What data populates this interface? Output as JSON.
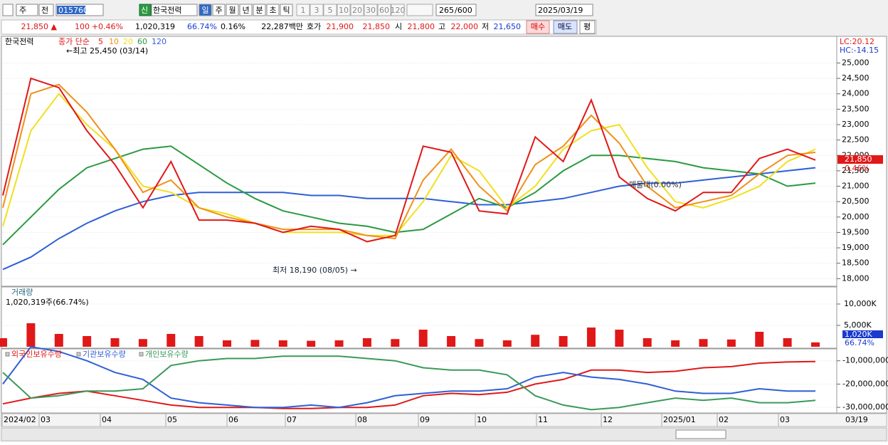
{
  "toolbar": {
    "market": "주",
    "mode": "전",
    "code": "015760",
    "badge": "신",
    "name": "한국전력",
    "periods": [
      "일",
      "주",
      "월",
      "년",
      "분",
      "초",
      "틱"
    ],
    "intervals": [
      "1",
      "3",
      "5",
      "10",
      "20",
      "30",
      "60",
      "120"
    ],
    "count": "265",
    "max": "/600",
    "date": "2025/03/19"
  },
  "quote": {
    "price": "21,850 ▲",
    "change": "100",
    "rate": "+0.46%",
    "volume": "1,020,319",
    "volume_rate": "66.74%",
    "turnover_rate": "0.16%",
    "amount": "22,287백만",
    "ask_label": "호가",
    "ask": "21,900",
    "bid": "21,850",
    "open_label": "시",
    "open": "21,800",
    "high_label": "고",
    "high": "22,000",
    "low_label": "저",
    "low": "21,650",
    "buy": "매수",
    "sell": "매도",
    "avg": "평"
  },
  "price_panel": {
    "name": "한국전력",
    "ma_label": "종가 단순",
    "max_note": "←최고 25,450 (03/14)",
    "min_note": "최저 18,190 (08/05) →",
    "zone_note": "매물대(0.00%)",
    "lc": "LC:20.12",
    "hc": "HC:-14.15",
    "last_price": "21,850",
    "last_rate": "0.46%",
    "ylim": [
      17800,
      25750
    ],
    "yticks": [
      {
        "value": 18000,
        "label": "18,000"
      },
      {
        "value": 18500,
        "label": "18,500"
      },
      {
        "value": 19000,
        "label": "19,000"
      },
      {
        "value": 19500,
        "label": "19,500"
      },
      {
        "value": 20000,
        "label": "20,000"
      },
      {
        "value": 20500,
        "label": "20,500"
      },
      {
        "value": 21000,
        "label": "21,000"
      },
      {
        "value": 21500,
        "label": "21,500"
      },
      {
        "value": 22000,
        "label": "22,000"
      },
      {
        "value": 22500,
        "label": "22,500"
      },
      {
        "value": 23000,
        "label": "23,000"
      },
      {
        "value": 23500,
        "label": "23,500"
      },
      {
        "value": 24000,
        "label": "24,000"
      },
      {
        "value": 24500,
        "label": "24,500"
      },
      {
        "value": 25000,
        "label": "25,000"
      }
    ],
    "series": [
      {
        "name": "120",
        "color": "#2f5fd6",
        "values": [
          18300,
          18700,
          19300,
          19800,
          20200,
          20500,
          20700,
          20800,
          20800,
          20800,
          20800,
          20700,
          20700,
          20600,
          20600,
          20600,
          20500,
          20400,
          20400,
          20500,
          20600,
          20800,
          21000,
          21100,
          21100,
          21200,
          21300,
          21400,
          21500,
          21600
        ]
      },
      {
        "name": "60",
        "color": "#2a9a40",
        "values": [
          19100,
          20000,
          20900,
          21600,
          21900,
          22200,
          22300,
          21700,
          21100,
          20600,
          20200,
          20000,
          19800,
          19700,
          19500,
          19600,
          20100,
          20600,
          20300,
          20800,
          21500,
          22000,
          22000,
          21900,
          21800,
          21600,
          21500,
          21400,
          21000,
          21100
        ]
      },
      {
        "name": "20",
        "color": "#f0e020",
        "values": [
          19700,
          22800,
          24000,
          23000,
          22200,
          21000,
          20800,
          20300,
          20100,
          19800,
          19500,
          19500,
          19500,
          19400,
          19400,
          20500,
          22000,
          21500,
          20300,
          21000,
          22200,
          22800,
          23000,
          21600,
          20500,
          20300,
          20600,
          21000,
          21800,
          22200
        ]
      },
      {
        "name": "10",
        "color": "#f0901a",
        "values": [
          20300,
          24000,
          24300,
          23400,
          22200,
          20800,
          21200,
          20300,
          20000,
          19800,
          19600,
          19600,
          19600,
          19400,
          19300,
          21200,
          22200,
          21000,
          20200,
          21700,
          22300,
          23300,
          22400,
          21000,
          20300,
          20500,
          20700,
          21400,
          22000,
          22100
        ]
      },
      {
        "name": "5",
        "color": "#e01818",
        "values": [
          20700,
          24500,
          24200,
          22800,
          21700,
          20300,
          21800,
          19900,
          19900,
          19800,
          19500,
          19700,
          19600,
          19200,
          19400,
          22300,
          22100,
          20200,
          20100,
          22600,
          21800,
          23800,
          21300,
          20600,
          20200,
          20800,
          20800,
          21900,
          22200,
          21850
        ]
      }
    ]
  },
  "volume_panel": {
    "title": "거래량",
    "note": "1,020,319주(66.74%)",
    "last": "1,020K",
    "last_rate": "66.74%",
    "color": "#e01818",
    "ylim": [
      0,
      13500
    ],
    "yticks": [
      {
        "value": 5000,
        "label": "5,000K"
      },
      {
        "value": 10000,
        "label": "10,000K"
      }
    ],
    "values": [
      2000,
      5500,
      3000,
      2500,
      2000,
      1800,
      3000,
      2500,
      1500,
      1600,
      1500,
      1400,
      1500,
      2000,
      1800,
      4000,
      2500,
      1800,
      1500,
      2800,
      2500,
      4500,
      4000,
      2000,
      1500,
      1800,
      1700,
      3500,
      2000,
      1020
    ]
  },
  "holding_panel": {
    "ylim": [
      -32400000,
      -5800000
    ],
    "yticks": [
      {
        "value": -10000000,
        "label": "-10,000,000"
      },
      {
        "value": -20000000,
        "label": "-20,000,000"
      },
      {
        "value": -30000000,
        "label": "-30,000,000"
      }
    ],
    "series": [
      {
        "name": "외국인보유수량",
        "color": "#e01818",
        "values": [
          -28500000,
          -26000000,
          -24000000,
          -23000000,
          -25000000,
          -27000000,
          -29000000,
          -30000000,
          -30000000,
          -30000000,
          -30500000,
          -30500000,
          -30000000,
          -30000000,
          -29000000,
          -25000000,
          -24000000,
          -24500000,
          -23500000,
          -20000000,
          -18000000,
          -14000000,
          -14000000,
          -15000000,
          -14500000,
          -13000000,
          -12500000,
          -11000000,
          -10500000,
          -10300000
        ]
      },
      {
        "name": "기관보유수량",
        "color": "#2f5fd6",
        "values": [
          -20000000,
          -4000000,
          -6000000,
          -10000000,
          -15000000,
          -18000000,
          -26000000,
          -28000000,
          -29000000,
          -30000000,
          -30000000,
          -29000000,
          -30000000,
          -28000000,
          -25000000,
          -24000000,
          -23000000,
          -23000000,
          -22000000,
          -17000000,
          -15000000,
          -17000000,
          -18000000,
          -20000000,
          -23000000,
          -24000000,
          -24000000,
          -22000000,
          -23000000,
          -23000000
        ]
      },
      {
        "name": "개인보유수량",
        "color": "#3a9a5a",
        "values": [
          -15000000,
          -26000000,
          -25000000,
          -23000000,
          -23000000,
          -22000000,
          -12000000,
          -10000000,
          -9000000,
          -9000000,
          -8000000,
          -8000000,
          -8000000,
          -9000000,
          -10000000,
          -13000000,
          -14000000,
          -14000000,
          -16000000,
          -25000000,
          -29000000,
          -31000000,
          -30000000,
          -28000000,
          -26000000,
          -27000000,
          -26000000,
          -28000000,
          -28000000,
          -27000000
        ]
      }
    ]
  },
  "x_axis": {
    "labels": [
      "2024/02",
      "03",
      "04",
      "05",
      "06",
      "07",
      "08",
      "09",
      "10",
      "11",
      "12",
      "2025/01",
      "02",
      "03"
    ],
    "end": "03/19"
  }
}
